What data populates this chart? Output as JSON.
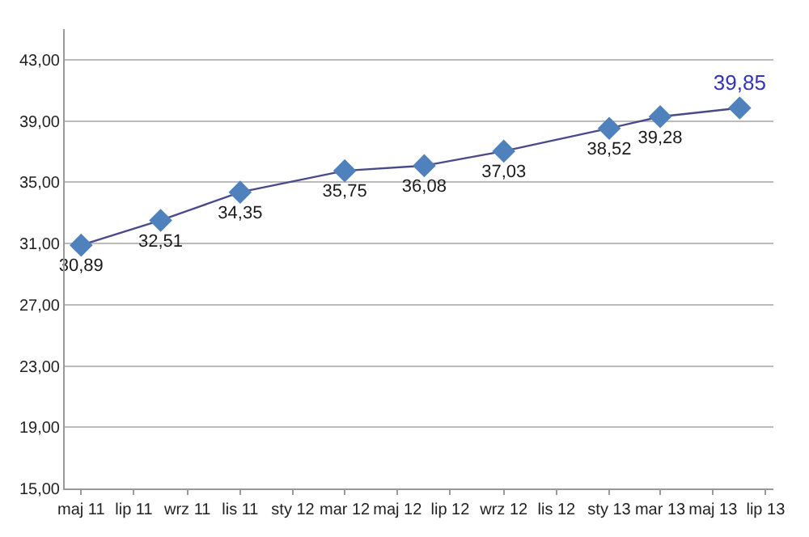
{
  "chart_data": {
    "type": "line",
    "x": [
      "2011-05",
      "2011-08",
      "2011-11",
      "2012-03",
      "2012-06",
      "2012-09",
      "2013-01",
      "2013-03",
      "2013-06"
    ],
    "series": [
      {
        "color": "#4f81bd",
        "values": [
          30.89,
          32.51,
          34.35,
          35.75,
          36.08,
          37.03,
          38.52,
          39.28,
          39.85
        ]
      }
    ],
    "value_labels": [
      "30,89",
      "32,51",
      "34,35",
      "35,75",
      "36,08",
      "37,03",
      "38,52",
      "39,28",
      "39,85"
    ],
    "xlim": [
      "2011-04-12",
      "2013-07-10"
    ],
    "xticks": [
      {
        "value": "2011-05",
        "label": "maj 11"
      },
      {
        "value": "2011-07",
        "label": "lip 11"
      },
      {
        "value": "2011-09",
        "label": "wrz 11"
      },
      {
        "value": "2011-11",
        "label": "lis 11"
      },
      {
        "value": "2012-01",
        "label": "sty 12"
      },
      {
        "value": "2012-03",
        "label": "mar 12"
      },
      {
        "value": "2012-05",
        "label": "maj 12"
      },
      {
        "value": "2012-07",
        "label": "lip 12"
      },
      {
        "value": "2012-09",
        "label": "wrz 12"
      },
      {
        "value": "2012-11",
        "label": "lis 12"
      },
      {
        "value": "2013-01",
        "label": "sty 13"
      },
      {
        "value": "2013-03",
        "label": "mar 13"
      },
      {
        "value": "2013-05",
        "label": "maj 13"
      },
      {
        "value": "2013-07",
        "label": "lip 13"
      }
    ],
    "ylim": [
      15,
      45
    ],
    "yticks": [
      {
        "value": 15,
        "label": "15,00"
      },
      {
        "value": 19,
        "label": "19,00"
      },
      {
        "value": 23,
        "label": "23,00"
      },
      {
        "value": 27,
        "label": "27,00"
      },
      {
        "value": 31,
        "label": "31,00"
      },
      {
        "value": 35,
        "label": "35,00"
      },
      {
        "value": 39,
        "label": "39,00"
      },
      {
        "value": 43,
        "label": "43,00"
      }
    ],
    "grid": "y",
    "marker": "diamond",
    "line_style": "solid",
    "legend": false
  }
}
